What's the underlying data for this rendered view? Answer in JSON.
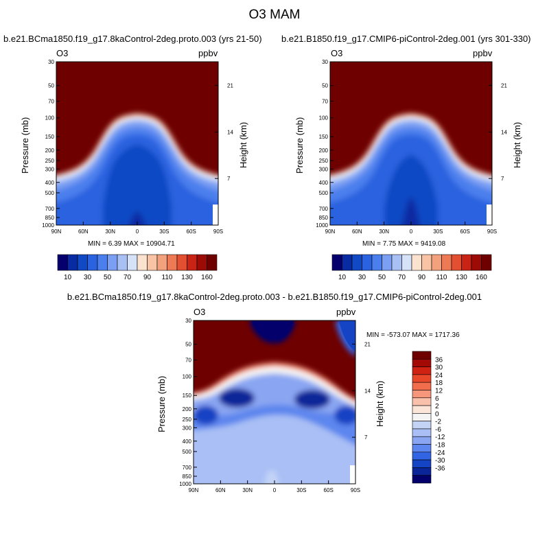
{
  "main_title": "O3 MAM",
  "palettes": {
    "top": [
      "#05006e",
      "#082ba3",
      "#1149c4",
      "#2a62df",
      "#4b7fed",
      "#7a9ff3",
      "#a9c0f5",
      "#d6e2f7",
      "#fbe3cf",
      "#f8c4a5",
      "#f3a17c",
      "#ee7a55",
      "#e24f31",
      "#c92315",
      "#9c0b06",
      "#6e0000"
    ],
    "diff": [
      "#6e0000",
      "#a30a05",
      "#cf2212",
      "#e9472a",
      "#f26d4c",
      "#f6967a",
      "#f9c1ab",
      "#fbe4d8",
      "#f4f4f4",
      "#c2d3f6",
      "#a9bff5",
      "#8aa6f2",
      "#5d86ee",
      "#3265e3",
      "#1443c3",
      "#0a2598",
      "#03006b"
    ]
  },
  "panels": [
    {
      "subtitle": "b.e21.BCma1850.f19_g17.8kaControl-2deg.proto.003 (yrs 21-50)",
      "var_label": "O3",
      "unit_label": "ppbv",
      "min_max": "MIN =   6.39  MAX = 10904.71"
    },
    {
      "subtitle": "b.e21.B1850.f19_g17.CMIP6-piControl-2deg.001 (yrs 301-330)",
      "var_label": "O3",
      "unit_label": "ppbv",
      "min_max": "MIN =   7.75  MAX = 9419.08"
    },
    {
      "subtitle": "b.e21.BCma1850.f19_g17.8kaControl-2deg.proto.003 - b.e21.B1850.f19_g17.CMIP6-piControl-2deg.001",
      "var_label": "O3",
      "unit_label": "ppbv",
      "min_max": "MIN = -573.07  MAX = 1717.36"
    }
  ],
  "chart_data": [
    {
      "type": "heatmap",
      "title": "b.e21.BCma1850.f19_g17.8kaControl-2deg.proto.003 (yrs 21-50)",
      "xlabel": "",
      "ylabel": "Pressure (mb)",
      "y2label": "Height (km)",
      "x_ticks": [
        "90N",
        "60N",
        "30N",
        "0",
        "30S",
        "60S",
        "90S"
      ],
      "y_ticks": [
        "30",
        "50",
        "70",
        "100",
        "150",
        "200",
        "250",
        "300",
        "400",
        "500",
        "700",
        "850",
        "1000"
      ],
      "y2_ticks": [
        "21",
        "14",
        "7"
      ],
      "y_scale": "log",
      "colorbar_ticks": [
        "10",
        "30",
        "50",
        "70",
        "90",
        "110",
        "130",
        "160"
      ],
      "colorbar_orientation": "horizontal",
      "min": 6.39,
      "max": 10904.71
    },
    {
      "type": "heatmap",
      "title": "b.e21.B1850.f19_g17.CMIP6-piControl-2deg.001 (yrs 301-330)",
      "xlabel": "",
      "ylabel": "Pressure (mb)",
      "y2label": "Height (km)",
      "x_ticks": [
        "90N",
        "60N",
        "30N",
        "0",
        "30S",
        "60S",
        "90S"
      ],
      "y_ticks": [
        "30",
        "50",
        "70",
        "100",
        "150",
        "200",
        "250",
        "300",
        "400",
        "500",
        "700",
        "850",
        "1000"
      ],
      "y2_ticks": [
        "21",
        "14",
        "7"
      ],
      "y_scale": "log",
      "colorbar_ticks": [
        "10",
        "30",
        "50",
        "70",
        "90",
        "110",
        "130",
        "160"
      ],
      "colorbar_orientation": "horizontal",
      "min": 7.75,
      "max": 9419.08
    },
    {
      "type": "heatmap",
      "title": "b.e21.BCma1850.f19_g17.8kaControl-2deg.proto.003 - b.e21.B1850.f19_g17.CMIP6-piControl-2deg.001",
      "xlabel": "",
      "ylabel": "Pressure (mb)",
      "y2label": "Height (km)",
      "x_ticks": [
        "90N",
        "60N",
        "30N",
        "0",
        "30S",
        "60S",
        "90S"
      ],
      "y_ticks": [
        "30",
        "50",
        "70",
        "100",
        "150",
        "200",
        "250",
        "300",
        "400",
        "500",
        "700",
        "850",
        "1000"
      ],
      "y2_ticks": [
        "21",
        "14",
        "7"
      ],
      "y_scale": "log",
      "colorbar_ticks": [
        "36",
        "30",
        "24",
        "18",
        "12",
        "6",
        "2",
        "0",
        "-2",
        "-6",
        "-12",
        "-18",
        "-24",
        "-30",
        "-36"
      ],
      "colorbar_orientation": "vertical",
      "min": -573.07,
      "max": 1717.36
    }
  ]
}
